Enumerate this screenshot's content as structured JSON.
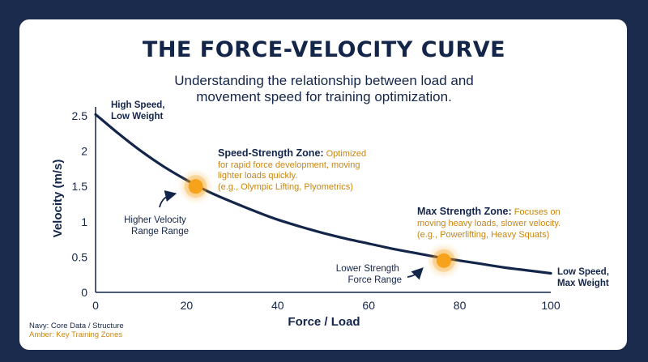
{
  "header": {
    "title": "THE FORCE-VELOCITY CURVE",
    "subtitle_line1": "Understanding the relationship between load and",
    "subtitle_line2": "movement speed for training optimization."
  },
  "legend": {
    "navy": "Navy: Core Data / Structure",
    "amber": "Amber: Key Training Zones"
  },
  "colors": {
    "navy": "#14254a",
    "amber": "#c9860f",
    "marker": "#f7a21b",
    "background": "#1b2b4d"
  },
  "chart_data": {
    "type": "line",
    "xlabel": "Force / Load",
    "ylabel": "Velocity (m/s)",
    "xlim": [
      0,
      100
    ],
    "ylim": [
      0,
      2.5
    ],
    "x_ticks": [
      0,
      20,
      40,
      60,
      80,
      100
    ],
    "y_ticks": [
      0,
      0.5,
      1,
      1.5,
      2,
      2.5
    ],
    "y_tick_labels": [
      "0",
      "0.5",
      "1",
      "1.5",
      "2",
      "2.5"
    ],
    "series": [
      {
        "x": [
          0,
          5,
          10,
          15,
          20,
          25,
          30,
          35,
          40,
          45,
          50,
          55,
          60,
          65,
          70,
          75,
          80,
          85,
          90,
          95,
          100
        ],
        "y": [
          2.52,
          2.25,
          2.0,
          1.78,
          1.59,
          1.42,
          1.28,
          1.15,
          1.03,
          0.93,
          0.84,
          0.76,
          0.69,
          0.62,
          0.56,
          0.5,
          0.45,
          0.4,
          0.35,
          0.31,
          0.27
        ]
      }
    ],
    "highlights": [
      {
        "x": 22,
        "y": 1.5
      },
      {
        "x": 76.5,
        "y": 0.45
      }
    ],
    "annotations": {
      "top_left": {
        "line1": "High Speed,",
        "line2": "Low Weight"
      },
      "bottom_right": {
        "line1": "Low Speed,",
        "line2": "Max Weight"
      },
      "higher_velocity": {
        "line1": "Higher Velocity",
        "line2": "Range Range"
      },
      "lower_strength": {
        "line1": "Lower Strength",
        "line2": "Force Range"
      },
      "speed_zone": {
        "heading": "Speed-Strength Zone:",
        "line1_rest": "Optimized",
        "line2": "for rapid force development, moving",
        "line3": "lighter loads quickly.",
        "line4": "(e.g., Olympic Lifting, Plyometrics)"
      },
      "max_zone": {
        "heading": "Max Strength Zone:",
        "line1_rest": "Focuses on",
        "line2": "moving heavy loads, slower velocity.",
        "line3": "(e.g., Powerlifting, Heavy Squats)"
      }
    }
  }
}
